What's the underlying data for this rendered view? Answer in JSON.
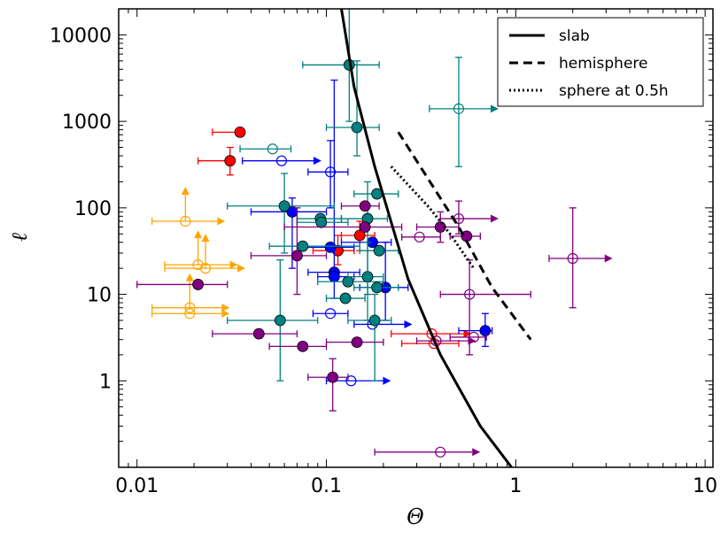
{
  "chart_data": {
    "type": "scatter",
    "xlabel": "Θ",
    "ylabel": "ℓ",
    "xscale": "log",
    "yscale": "log",
    "xlim": [
      0.008,
      11
    ],
    "ylim": [
      0.1,
      20000
    ],
    "x_ticks": [
      {
        "value": 0.01,
        "label": "0.01"
      },
      {
        "value": 0.1,
        "label": "0.1"
      },
      {
        "value": 1,
        "label": "1"
      },
      {
        "value": 10,
        "label": "10"
      }
    ],
    "y_ticks": [
      {
        "value": 1,
        "label": "1"
      },
      {
        "value": 10,
        "label": "10"
      },
      {
        "value": 100,
        "label": "100"
      },
      {
        "value": 1000,
        "label": "1000"
      },
      {
        "value": 10000,
        "label": "10000"
      }
    ],
    "legend": {
      "placement": "top-right",
      "entries": [
        {
          "label": "slab",
          "style": "solid"
        },
        {
          "label": "hemisphere",
          "style": "dashed"
        },
        {
          "label": "sphere at 0.5h",
          "style": "dotted"
        }
      ]
    },
    "colors": {
      "orange": "#ffa500",
      "red": "#ff0000",
      "blue": "#0000ff",
      "teal": "#008080",
      "purple": "#800080"
    },
    "lines": [
      {
        "name": "slab",
        "style": "solid",
        "points": [
          [
            0.12,
            20000
          ],
          [
            0.14,
            2500
          ],
          [
            0.18,
            300
          ],
          [
            0.27,
            15
          ],
          [
            0.4,
            2
          ],
          [
            0.65,
            0.3
          ],
          [
            0.95,
            0.1
          ]
        ]
      },
      {
        "name": "hemisphere",
        "style": "dashed",
        "points": [
          [
            0.24,
            750
          ],
          [
            0.5,
            60
          ],
          [
            0.75,
            12
          ],
          [
            1.2,
            3
          ]
        ]
      },
      {
        "name": "sphere at 0.5h",
        "style": "dotted",
        "points": [
          [
            0.22,
            300
          ],
          [
            0.35,
            100
          ],
          [
            0.45,
            50
          ],
          [
            0.6,
            20
          ]
        ]
      }
    ],
    "series": [
      {
        "name": "orange",
        "color": "#ffa500",
        "points": [
          {
            "x": 0.018,
            "y": 70,
            "filled": false,
            "xmin": 0.012,
            "xerr_lower": true,
            "xarrow": true,
            "yarrow": true
          },
          {
            "x": 0.019,
            "y": 7,
            "filled": false,
            "xmin": 0.012,
            "xarrow": true,
            "yarrow": true
          },
          {
            "x": 0.019,
            "y": 6,
            "filled": false,
            "xmin": 0.012,
            "xarrow": true
          },
          {
            "x": 0.021,
            "y": 22,
            "filled": false,
            "xmin": 0.014,
            "xarrow": true,
            "yarrow": true
          },
          {
            "x": 0.023,
            "y": 20,
            "filled": false,
            "xmin": 0.014,
            "xarrow": true,
            "yarrow": true
          }
        ]
      },
      {
        "name": "red",
        "color": "#ff0000",
        "points": [
          {
            "x": 0.035,
            "y": 750,
            "filled": true,
            "xmin": 0.025
          },
          {
            "x": 0.031,
            "y": 350,
            "filled": true,
            "xmin": 0.021,
            "ymin": 240,
            "ymax": 500
          },
          {
            "x": 0.115,
            "y": 32,
            "filled": true,
            "xmin": 0.085,
            "xmax": 0.14,
            "ymin": 22,
            "ymax": 48
          },
          {
            "x": 0.15,
            "y": 48,
            "filled": true,
            "xmin": 0.12,
            "xmax": 0.18,
            "ymin": 32,
            "ymax": 70
          },
          {
            "x": 0.36,
            "y": 3.5,
            "filled": false,
            "xmin": 0.22,
            "xarrow": true
          },
          {
            "x": 0.37,
            "y": 2.7,
            "filled": false,
            "xmin": 0.25,
            "xmax": 0.5
          }
        ]
      },
      {
        "name": "blue",
        "color": "#0000ff",
        "points": [
          {
            "x": 0.058,
            "y": 350,
            "filled": false,
            "xmin": 0.036,
            "xarrow": true
          },
          {
            "x": 0.066,
            "y": 90,
            "filled": true,
            "xmin": 0.04,
            "xmax": 0.1,
            "ymin": 20,
            "ymax": 130
          },
          {
            "x": 0.105,
            "y": 260,
            "filled": false,
            "xmin": 0.08,
            "xmax": 0.13,
            "ymin": 100,
            "ymax": 600
          },
          {
            "x": 0.105,
            "y": 35,
            "filled": true,
            "xmin": 0.075,
            "xmax": 0.14
          },
          {
            "x": 0.11,
            "y": 18,
            "filled": true,
            "xmin": 0.08,
            "xmax": 0.15,
            "ymin": 9,
            "ymax": 3000
          },
          {
            "x": 0.11,
            "y": 16,
            "filled": true,
            "xmin": 0.09,
            "xmax": 0.14
          },
          {
            "x": 0.105,
            "y": 6,
            "filled": false,
            "xmin": 0.085,
            "xmax": 0.13
          },
          {
            "x": 0.135,
            "y": 1,
            "filled": false,
            "xmin": 0.1,
            "xarrow": true
          },
          {
            "x": 0.175,
            "y": 40,
            "filled": true,
            "xmin": 0.12,
            "xmax": 0.22
          },
          {
            "x": 0.175,
            "y": 4.5,
            "filled": false,
            "xmin": 0.14,
            "xarrow": true
          },
          {
            "x": 0.205,
            "y": 12,
            "filled": true,
            "xmin": 0.15,
            "xmax": 0.27,
            "ymin": 5,
            "ymax": 40
          },
          {
            "x": 0.69,
            "y": 3.8,
            "filled": true,
            "xmin": 0.5,
            "xmax": 0.75,
            "ymin": 2.5,
            "ymax": 6
          }
        ]
      },
      {
        "name": "teal",
        "color": "#008080",
        "points": [
          {
            "x": 0.132,
            "y": 4500,
            "filled": true,
            "xmin": 0.075,
            "xmax": 0.19,
            "ymin": 1000,
            "ymax": 20000
          },
          {
            "x": 0.145,
            "y": 850,
            "filled": true,
            "xmin": 0.1,
            "xmax": 0.19,
            "ymin": 400,
            "ymax": 5000
          },
          {
            "x": 0.052,
            "y": 480,
            "filled": false,
            "xmin": 0.035,
            "xmax": 0.065
          },
          {
            "x": 0.06,
            "y": 105,
            "filled": true,
            "xmin": 0.03,
            "xmax": 0.11,
            "ymin": 30,
            "ymax": 250
          },
          {
            "x": 0.093,
            "y": 75,
            "filled": true,
            "xmin": 0.07,
            "xmax": 0.12
          },
          {
            "x": 0.094,
            "y": 68,
            "filled": true,
            "xmin": 0.07,
            "xmax": 0.13
          },
          {
            "x": 0.075,
            "y": 36,
            "filled": true,
            "xmin": 0.05,
            "xmax": 0.15
          },
          {
            "x": 0.057,
            "y": 5,
            "filled": true,
            "xmin": 0.03,
            "xmax": 0.09,
            "ymin": 1,
            "ymax": 25
          },
          {
            "x": 0.126,
            "y": 9,
            "filled": true,
            "xmin": 0.1,
            "xmax": 0.16
          },
          {
            "x": 0.13,
            "y": 14,
            "filled": true,
            "xmin": 0.09,
            "xmax": 0.2
          },
          {
            "x": 0.165,
            "y": 16,
            "filled": true,
            "xmin": 0.13,
            "xmax": 0.2,
            "ymin": 5,
            "ymax": 40
          },
          {
            "x": 0.165,
            "y": 75,
            "filled": true,
            "xmin": 0.12,
            "xmax": 0.21,
            "ymin": 10,
            "ymax": 200
          },
          {
            "x": 0.185,
            "y": 145,
            "filled": true,
            "xmin": 0.14,
            "xmax": 0.24
          },
          {
            "x": 0.185,
            "y": 12,
            "filled": true,
            "xmin": 0.14,
            "xmax": 0.24
          },
          {
            "x": 0.18,
            "y": 5,
            "filled": true,
            "xmin": 0.13,
            "xmax": 0.22,
            "ymin": 1,
            "ymax": 10
          },
          {
            "x": 0.19,
            "y": 32,
            "filled": true,
            "xmin": 0.15,
            "xmax": 0.24
          },
          {
            "x": 0.5,
            "y": 1400,
            "filled": false,
            "xmin": 0.35,
            "xarrow": true,
            "ymin": 300,
            "ymax": 5500
          }
        ]
      },
      {
        "name": "purple",
        "color": "#800080",
        "points": [
          {
            "x": 0.021,
            "y": 13,
            "filled": true,
            "xmin": 0.01,
            "xmax": 0.03
          },
          {
            "x": 0.044,
            "y": 3.5,
            "filled": true,
            "xmin": 0.025,
            "xmax": 0.07
          },
          {
            "x": 0.07,
            "y": 28,
            "filled": true,
            "xmin": 0.04,
            "xmax": 0.1,
            "ymin": 10,
            "ymax": 100
          },
          {
            "x": 0.075,
            "y": 2.5,
            "filled": true,
            "xmin": 0.05,
            "xmax": 0.1
          },
          {
            "x": 0.108,
            "y": 1.1,
            "filled": true,
            "xmin": 0.08,
            "xmax": 0.13,
            "ymin": 0.45,
            "ymax": 1.8
          },
          {
            "x": 0.145,
            "y": 2.8,
            "filled": true,
            "xmin": 0.1,
            "xmax": 0.2
          },
          {
            "x": 0.16,
            "y": 105,
            "filled": true,
            "xmin": 0.12,
            "xmax": 0.19
          },
          {
            "x": 0.16,
            "y": 60,
            "filled": true,
            "xmin": 0.06,
            "xmax": 0.25
          },
          {
            "x": 0.4,
            "y": 60,
            "filled": true,
            "xmin": 0.3,
            "xmax": 0.5,
            "ymin": 40,
            "ymax": 90
          },
          {
            "x": 0.31,
            "y": 46,
            "filled": false,
            "xmin": 0.25,
            "xmax": 0.4
          },
          {
            "x": 0.5,
            "y": 75,
            "filled": false,
            "xmin": 0.4,
            "xarrow": true,
            "ymin": 50,
            "ymax": 120
          },
          {
            "x": 0.55,
            "y": 47,
            "filled": true,
            "xmin": 0.45,
            "xmax": 0.65
          },
          {
            "x": 0.57,
            "y": 10,
            "filled": false,
            "xmin": 0.4,
            "xmax": 1.2,
            "ymin": 2,
            "ymax": 25
          },
          {
            "x": 0.6,
            "y": 3.2,
            "filled": false,
            "xmin": 0.45,
            "xmax": 0.7
          },
          {
            "x": 0.38,
            "y": 2.9,
            "filled": false,
            "xmin": 0.3,
            "xarrow": true
          },
          {
            "x": 2.0,
            "y": 26,
            "filled": false,
            "xmin": 1.5,
            "xarrow": true,
            "ymin": 7,
            "ymax": 100
          },
          {
            "x": 0.4,
            "y": 0.15,
            "filled": false,
            "xmin": 0.18,
            "xarrow": true
          }
        ]
      }
    ]
  }
}
